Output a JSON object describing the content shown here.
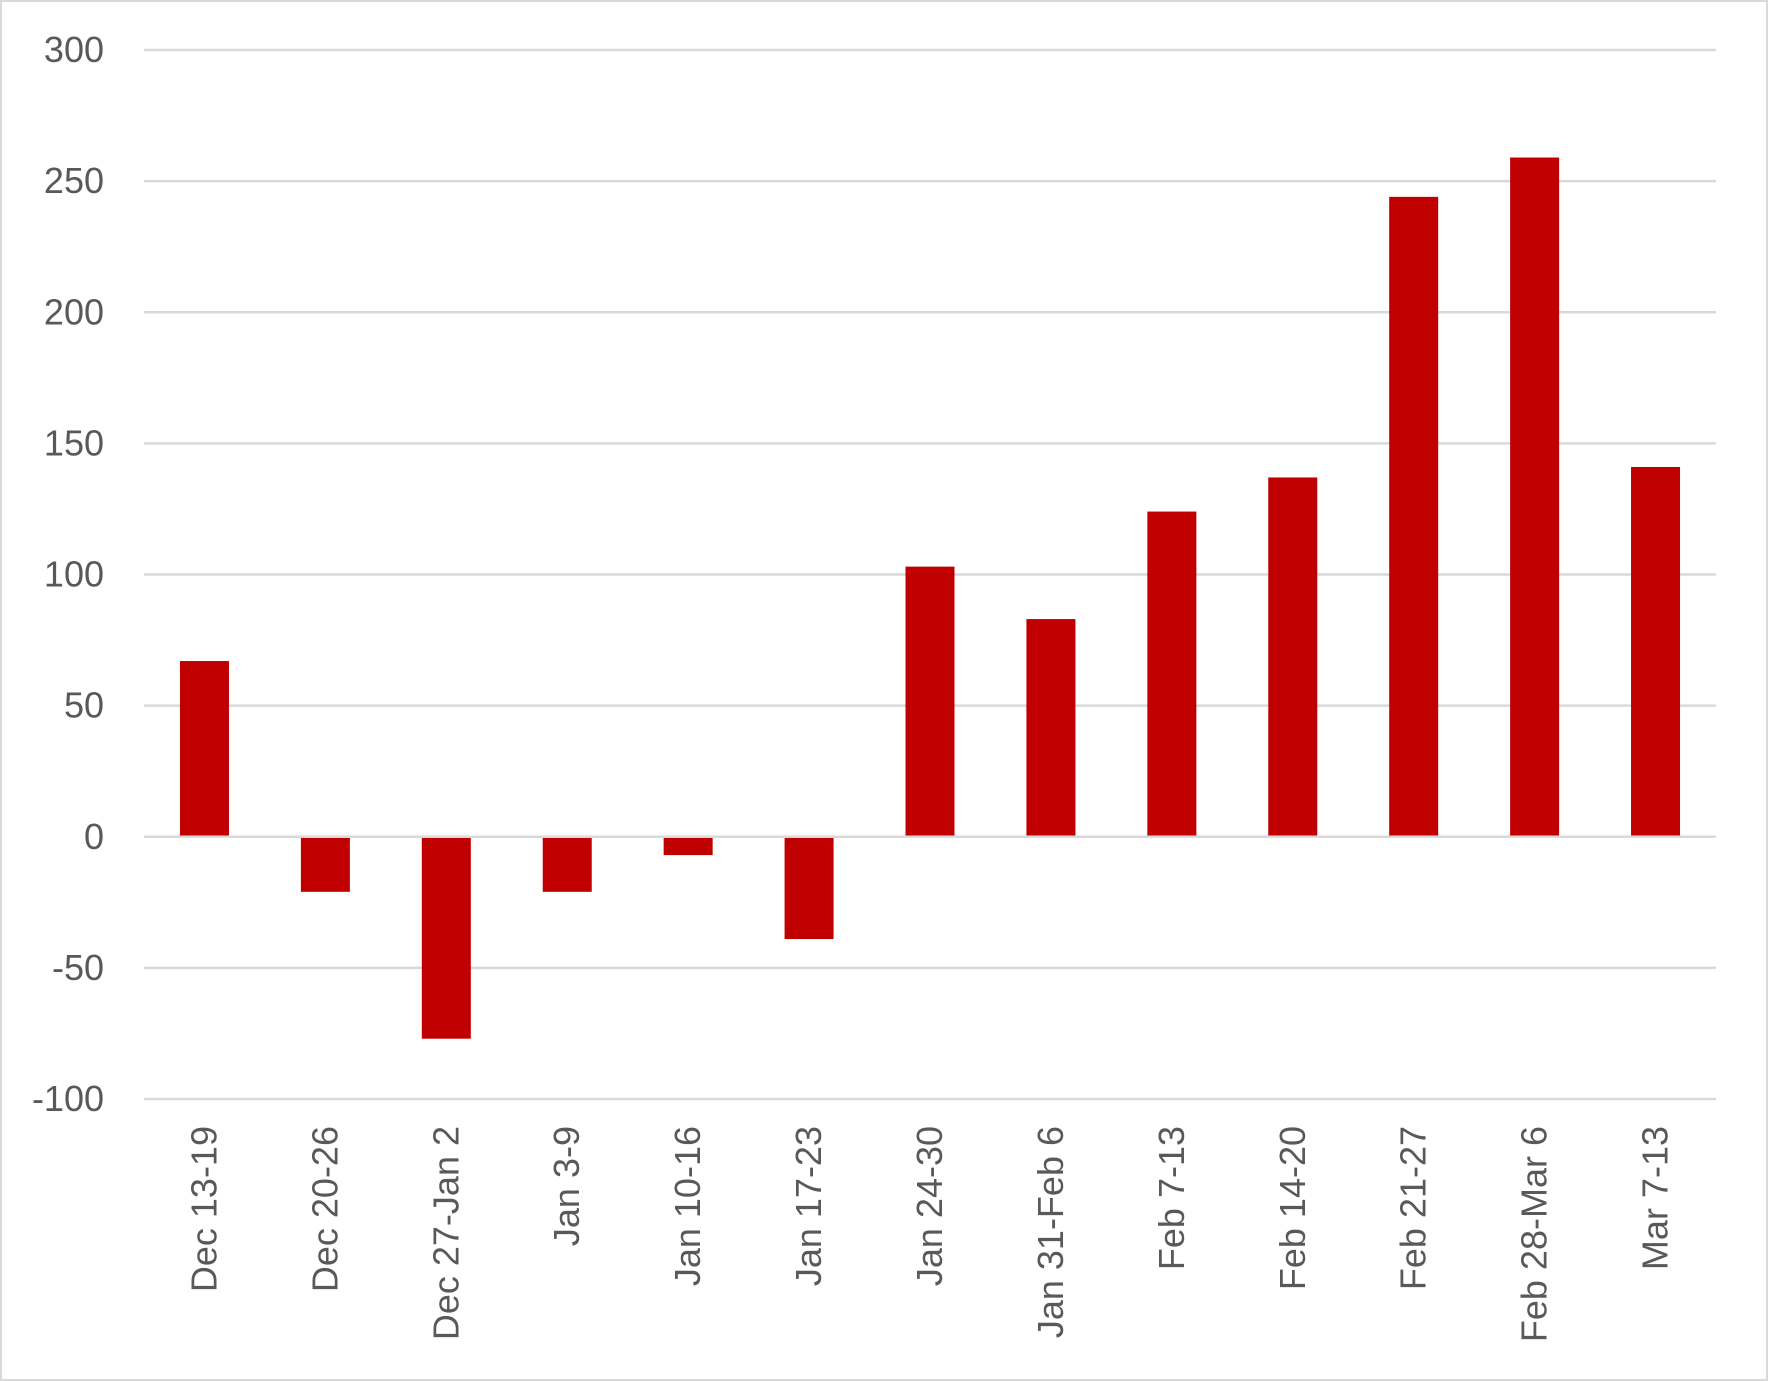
{
  "chart_data": {
    "type": "bar",
    "title": "",
    "xlabel": "",
    "ylabel": "",
    "categories": [
      "Dec 13-19",
      "Dec 20-26",
      "Dec 27-Jan 2",
      "Jan 3-9",
      "Jan 10-16",
      "Jan 17-23",
      "Jan 24-30",
      "Jan 31-Feb 6",
      "Feb 7-13",
      "Feb 14-20",
      "Feb 21-27",
      "Feb 28-Mar 6",
      "Mar 7-13"
    ],
    "values": [
      67,
      -21,
      -77,
      -21,
      -7,
      -39,
      103,
      83,
      124,
      137,
      244,
      259,
      141
    ],
    "ylim": [
      -100,
      300
    ],
    "yticks": [
      "-100",
      "-50",
      "0",
      "50",
      "100",
      "150",
      "200",
      "250",
      "300"
    ],
    "grid": true,
    "legend": "none",
    "bar_color": "#c00000",
    "grid_color": "#d9d9d9",
    "tick_color": "#595959"
  }
}
